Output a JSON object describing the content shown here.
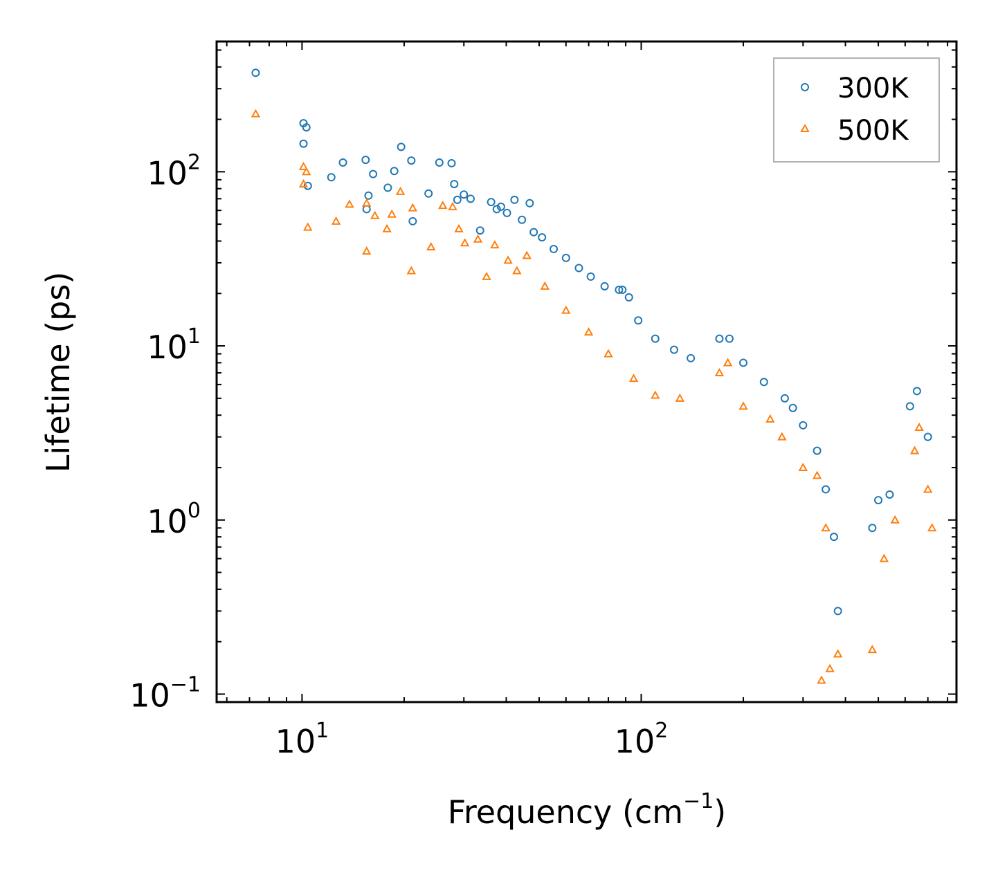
{
  "chart_data": {
    "type": "scatter",
    "title": "",
    "xlabel": "Frequency (cm",
    "xlabel_sup": "−1",
    "xlabel_suffix": ")",
    "ylabel": "Lifetime (ps)",
    "xscale": "log",
    "yscale": "log",
    "xlim": [
      5.6,
      850
    ],
    "ylim": [
      0.09,
      560
    ],
    "legend": "top-right",
    "grid": false,
    "x_ticks": [
      {
        "base": "10",
        "exp": "1",
        "value": 10
      },
      {
        "base": "10",
        "exp": "2",
        "value": 100
      }
    ],
    "y_ticks": [
      {
        "base": "10",
        "exp": "−1",
        "value": 0.1
      },
      {
        "base": "10",
        "exp": "0",
        "value": 1
      },
      {
        "base": "10",
        "exp": "1",
        "value": 10
      },
      {
        "base": "10",
        "exp": "2",
        "value": 100
      }
    ],
    "series": [
      {
        "name": "300K",
        "marker": "circle",
        "color": "#1f77b4",
        "points": [
          [
            7.3,
            370
          ],
          [
            10.1,
            190
          ],
          [
            10.3,
            180
          ],
          [
            10.1,
            145
          ],
          [
            10.4,
            83
          ],
          [
            12.2,
            93
          ],
          [
            13.2,
            113
          ],
          [
            15.4,
            117
          ],
          [
            15.7,
            73
          ],
          [
            15.5,
            61
          ],
          [
            16.2,
            97
          ],
          [
            17.9,
            81
          ],
          [
            18.7,
            101
          ],
          [
            19.6,
            139
          ],
          [
            21.0,
            116
          ],
          [
            21.2,
            52
          ],
          [
            23.6,
            75
          ],
          [
            25.4,
            113
          ],
          [
            27.6,
            112
          ],
          [
            28.1,
            85
          ],
          [
            28.7,
            69
          ],
          [
            30.0,
            74
          ],
          [
            31.4,
            70
          ],
          [
            33.5,
            46
          ],
          [
            36.1,
            67
          ],
          [
            37.5,
            61
          ],
          [
            38.6,
            63
          ],
          [
            40.2,
            58
          ],
          [
            42.3,
            69
          ],
          [
            44.5,
            53
          ],
          [
            46.9,
            66
          ],
          [
            48.2,
            45
          ],
          [
            51.0,
            42
          ],
          [
            55.2,
            36
          ],
          [
            60.0,
            32
          ],
          [
            65.5,
            28
          ],
          [
            71.0,
            25
          ],
          [
            78.0,
            22
          ],
          [
            86.0,
            21
          ],
          [
            88.0,
            21
          ],
          [
            92.0,
            19
          ],
          [
            98.0,
            14
          ],
          [
            110.0,
            11
          ],
          [
            125.0,
            9.5
          ],
          [
            140.0,
            8.5
          ],
          [
            170.0,
            11
          ],
          [
            182.0,
            11
          ],
          [
            200.0,
            8
          ],
          [
            230.0,
            6.2
          ],
          [
            265.0,
            5
          ],
          [
            280.0,
            4.4
          ],
          [
            300.0,
            3.5
          ],
          [
            330.0,
            2.5
          ],
          [
            350.0,
            1.5
          ],
          [
            370.0,
            0.8
          ],
          [
            380.0,
            0.3
          ],
          [
            480.0,
            0.9
          ],
          [
            500.0,
            1.3
          ],
          [
            540.0,
            1.4
          ],
          [
            620.0,
            4.5
          ],
          [
            650.0,
            5.5
          ],
          [
            700.0,
            3
          ]
        ]
      },
      {
        "name": "500K",
        "marker": "triangle",
        "color": "#ff7f0e",
        "points": [
          [
            7.3,
            215
          ],
          [
            10.1,
            107
          ],
          [
            10.3,
            100
          ],
          [
            10.1,
            85
          ],
          [
            10.4,
            48
          ],
          [
            12.6,
            52
          ],
          [
            13.8,
            65
          ],
          [
            15.5,
            66
          ],
          [
            15.5,
            35
          ],
          [
            16.4,
            56
          ],
          [
            17.8,
            47
          ],
          [
            18.4,
            57
          ],
          [
            19.5,
            77
          ],
          [
            21.2,
            62
          ],
          [
            21.0,
            27
          ],
          [
            24.0,
            37
          ],
          [
            26.0,
            64
          ],
          [
            27.8,
            63
          ],
          [
            29.0,
            47
          ],
          [
            30.2,
            39
          ],
          [
            33.0,
            41
          ],
          [
            35.0,
            25
          ],
          [
            37.0,
            38
          ],
          [
            40.5,
            31
          ],
          [
            43.0,
            27
          ],
          [
            46.0,
            33
          ],
          [
            52.0,
            22
          ],
          [
            60.0,
            16
          ],
          [
            70.0,
            12
          ],
          [
            80.0,
            9
          ],
          [
            95.0,
            6.5
          ],
          [
            110.0,
            5.2
          ],
          [
            130.0,
            5
          ],
          [
            170.0,
            7
          ],
          [
            180.0,
            8
          ],
          [
            200.0,
            4.5
          ],
          [
            240.0,
            3.8
          ],
          [
            260.0,
            3
          ],
          [
            300.0,
            2
          ],
          [
            330.0,
            1.8
          ],
          [
            350.0,
            0.9
          ],
          [
            340.0,
            0.12
          ],
          [
            360.0,
            0.14
          ],
          [
            380.0,
            0.17
          ],
          [
            480.0,
            0.18
          ],
          [
            520.0,
            0.6
          ],
          [
            560.0,
            1
          ],
          [
            640.0,
            2.5
          ],
          [
            660.0,
            3.4
          ],
          [
            700.0,
            1.5
          ],
          [
            720.0,
            0.9
          ]
        ]
      }
    ]
  }
}
